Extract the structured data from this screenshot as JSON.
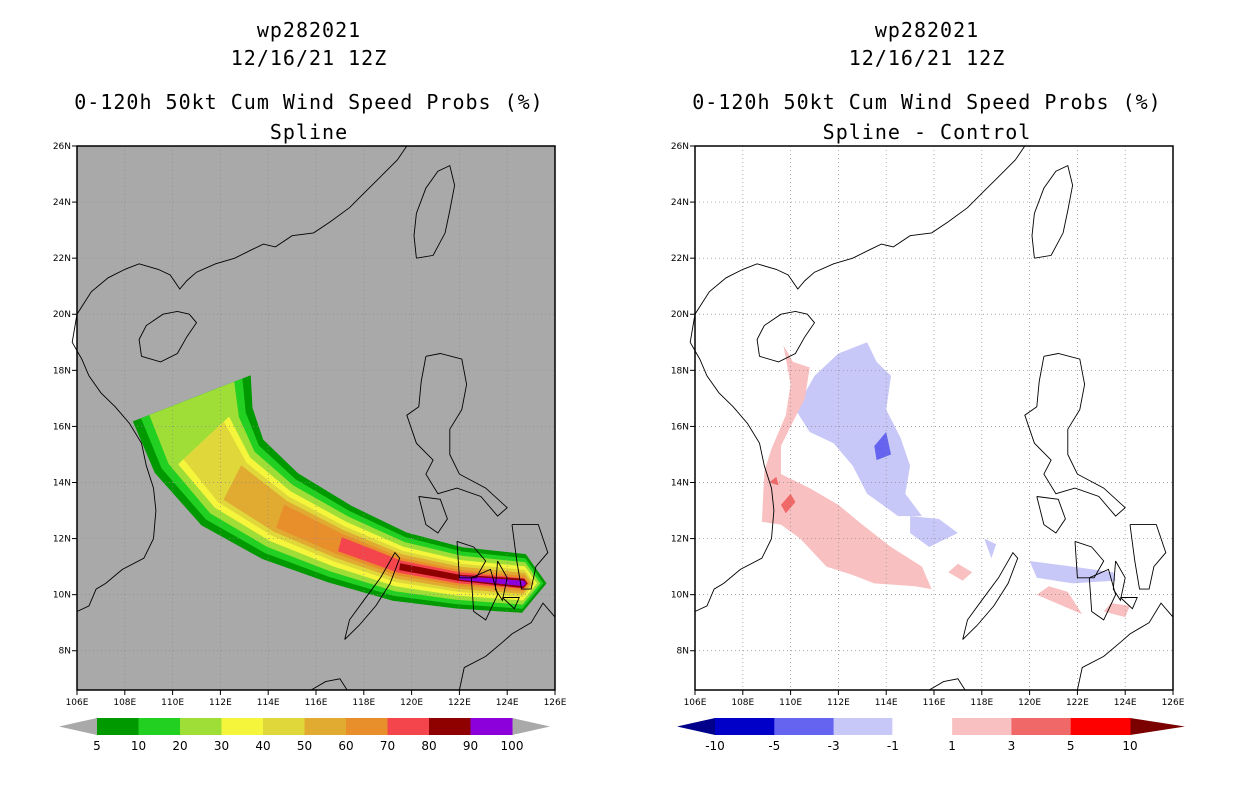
{
  "axes": {
    "lon_labels": [
      "106E",
      "108E",
      "110E",
      "112E",
      "114E",
      "116E",
      "118E",
      "120E",
      "122E",
      "124E",
      "126E"
    ],
    "lat_labels": [
      "8N",
      "10N",
      "12N",
      "14N",
      "16N",
      "18N",
      "20N",
      "22N",
      "24N",
      "26N"
    ]
  },
  "left_panel": {
    "storm_id": "wp282021",
    "date": "12/16/21 12Z",
    "product": "0-120h 50kt Cum Wind Speed Probs (%)",
    "subtitle": "Spline",
    "background_color": "#a9a9a9",
    "colorbar": {
      "labels": [
        "5",
        "10",
        "20",
        "30",
        "40",
        "50",
        "60",
        "70",
        "80",
        "90",
        "100"
      ],
      "colors": [
        "#009a00",
        "#22d022",
        "#9fde37",
        "#f5f53c",
        "#e0d83a",
        "#e0ab30",
        "#e88f2c",
        "#f5454c",
        "#8f0000",
        "#8b00db"
      ],
      "end_colors": [
        "#a9a9a9",
        "#a9a9a9"
      ]
    },
    "contour_colors": [
      "#009a00",
      "#22d022",
      "#9fde37",
      "#f5f53c",
      "#e0d83a",
      "#e0ab30",
      "#e88f2c",
      "#f5454c",
      "#8f0000",
      "#8b00db"
    ]
  },
  "right_panel": {
    "storm_id": "wp282021",
    "date": "12/16/21 12Z",
    "product": "0-120h 50kt Cum Wind Speed Probs (%)",
    "subtitle": "Spline - Control",
    "background_color": "#ffffff",
    "colorbar": {
      "labels": [
        "-10",
        "-5",
        "-3",
        "-1",
        "1",
        "3",
        "5",
        "10"
      ],
      "colors": [
        "#0000c8",
        "#6464f0",
        "#c8c8f8",
        "#ffffff",
        "#f8c0c0",
        "#f06868",
        "#ff0000"
      ],
      "end_colors": [
        "#00008b",
        "#7b0000"
      ]
    },
    "diff_colors": {
      "pos_light": "#f8c0c0",
      "pos_mid": "#f06868",
      "neg_light": "#c8c8f8",
      "neg_mid": "#6464f0"
    }
  }
}
